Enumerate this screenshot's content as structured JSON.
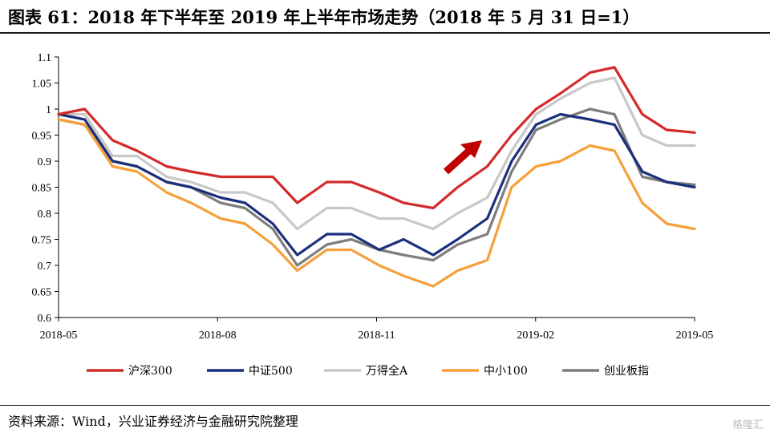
{
  "title": "图表 61：2018 年下半年至 2019 年上半年市场走势（2018 年 5 月 31 日=1）",
  "source": "资料来源：Wind，兴业证券经济与金融研究院整理",
  "watermark": "格隆汇",
  "chart_data": {
    "type": "line",
    "x_ticks": [
      "2018-05",
      "2018-08",
      "2018-11",
      "2019-02",
      "2019-05"
    ],
    "ylim": [
      0.6,
      1.1
    ],
    "y_ticks": [
      "0.6",
      "0.65",
      "0.7",
      "0.75",
      "0.8",
      "0.85",
      "0.9",
      "0.95",
      "1",
      "1.05",
      "1.1"
    ],
    "grid": false,
    "legend_position": "bottom",
    "annotation": "red up-right arrow",
    "x": [
      "2018-05-31",
      "2018-06-15",
      "2018-07-01",
      "2018-07-15",
      "2018-08-01",
      "2018-08-15",
      "2018-09-01",
      "2018-09-15",
      "2018-10-01",
      "2018-10-15",
      "2018-11-01",
      "2018-11-15",
      "2018-12-01",
      "2018-12-15",
      "2019-01-01",
      "2019-01-15",
      "2019-02-01",
      "2019-02-15",
      "2019-03-01",
      "2019-03-15",
      "2019-04-01",
      "2019-04-15",
      "2019-05-01",
      "2019-05-15",
      "2019-05-31"
    ],
    "series": [
      {
        "name": "沪深300",
        "color": "#d42a2a",
        "values": [
          0.99,
          1.0,
          0.94,
          0.92,
          0.89,
          0.88,
          0.87,
          0.87,
          0.87,
          0.82,
          0.86,
          0.86,
          0.84,
          0.82,
          0.81,
          0.85,
          0.89,
          0.95,
          1.0,
          1.03,
          1.07,
          1.08,
          0.99,
          0.96,
          0.955
        ]
      },
      {
        "name": "中证500",
        "color": "#1b2f7a",
        "values": [
          0.99,
          0.98,
          0.9,
          0.89,
          0.86,
          0.85,
          0.83,
          0.82,
          0.78,
          0.72,
          0.76,
          0.76,
          0.73,
          0.75,
          0.72,
          0.75,
          0.79,
          0.9,
          0.97,
          0.99,
          0.98,
          0.97,
          0.88,
          0.86,
          0.85
        ]
      },
      {
        "name": "万得全A",
        "color": "#c8c8c8",
        "values": [
          0.99,
          0.99,
          0.91,
          0.91,
          0.87,
          0.86,
          0.84,
          0.84,
          0.82,
          0.77,
          0.81,
          0.81,
          0.79,
          0.79,
          0.77,
          0.8,
          0.83,
          0.92,
          0.99,
          1.02,
          1.05,
          1.06,
          0.95,
          0.93,
          0.93
        ]
      },
      {
        "name": "中小100",
        "color": "#f5a03a",
        "values": [
          0.98,
          0.97,
          0.89,
          0.88,
          0.84,
          0.82,
          0.79,
          0.78,
          0.74,
          0.69,
          0.73,
          0.73,
          0.7,
          0.68,
          0.66,
          0.69,
          0.71,
          0.85,
          0.89,
          0.9,
          0.93,
          0.92,
          0.82,
          0.78,
          0.77
        ]
      },
      {
        "name": "创业板指",
        "color": "#7d7d7d",
        "values": [
          0.98,
          0.97,
          0.9,
          0.89,
          0.86,
          0.85,
          0.82,
          0.81,
          0.77,
          0.7,
          0.74,
          0.75,
          0.73,
          0.72,
          0.71,
          0.74,
          0.76,
          0.88,
          0.96,
          0.98,
          1.0,
          0.99,
          0.87,
          0.86,
          0.855
        ]
      }
    ]
  }
}
